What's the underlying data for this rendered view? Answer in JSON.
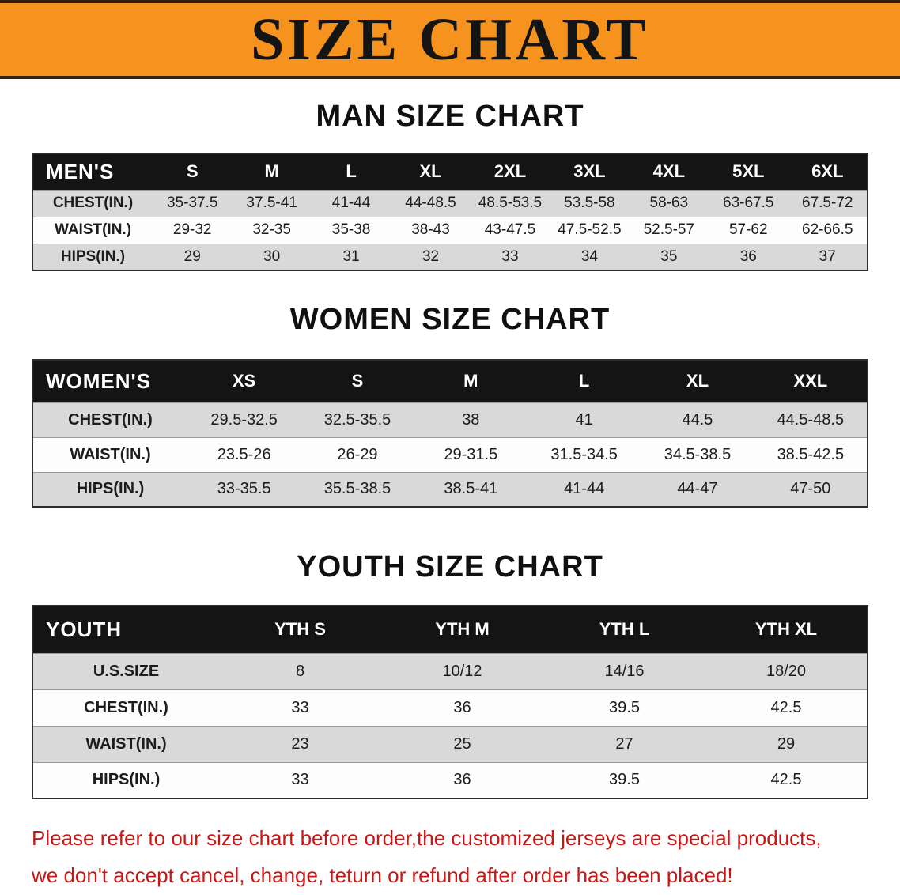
{
  "banner": {
    "title": "SIZE CHART"
  },
  "colors": {
    "banner_orange": "#f6921e",
    "header_black": "#141414",
    "row_gray": "#d9d9d9",
    "disclaimer_red": "#cc1616"
  },
  "tables": [
    {
      "heading": "MAN SIZE CHART",
      "header_label": "MEN'S",
      "sizes": [
        "S",
        "M",
        "L",
        "XL",
        "2XL",
        "3XL",
        "4XL",
        "5XL",
        "6XL"
      ],
      "rows": [
        {
          "label": "CHEST(IN.)",
          "values": [
            "35-37.5",
            "37.5-41",
            "41-44",
            "44-48.5",
            "48.5-53.5",
            "53.5-58",
            "58-63",
            "63-67.5",
            "67.5-72"
          ]
        },
        {
          "label": "WAIST(IN.)",
          "values": [
            "29-32",
            "32-35",
            "35-38",
            "38-43",
            "43-47.5",
            "47.5-52.5",
            "52.5-57",
            "57-62",
            "62-66.5"
          ]
        },
        {
          "label": "HIPS(IN.)",
          "values": [
            "29",
            "30",
            "31",
            "32",
            "33",
            "34",
            "35",
            "36",
            "37"
          ]
        }
      ]
    },
    {
      "heading": "WOMEN SIZE CHART",
      "header_label": "WOMEN'S",
      "sizes": [
        "XS",
        "S",
        "M",
        "L",
        "XL",
        "XXL"
      ],
      "rows": [
        {
          "label": "CHEST(IN.)",
          "values": [
            "29.5-32.5",
            "32.5-35.5",
            "38",
            "41",
            "44.5",
            "44.5-48.5"
          ]
        },
        {
          "label": "WAIST(IN.)",
          "values": [
            "23.5-26",
            "26-29",
            "29-31.5",
            "31.5-34.5",
            "34.5-38.5",
            "38.5-42.5"
          ]
        },
        {
          "label": "HIPS(IN.)",
          "values": [
            "33-35.5",
            "35.5-38.5",
            "38.5-41",
            "41-44",
            "44-47",
            "47-50"
          ]
        }
      ]
    },
    {
      "heading": "YOUTH SIZE CHART",
      "header_label": "YOUTH",
      "sizes": [
        "YTH S",
        "YTH M",
        "YTH L",
        "YTH XL"
      ],
      "rows": [
        {
          "label": "U.S.SIZE",
          "values": [
            "8",
            "10/12",
            "14/16",
            "18/20"
          ]
        },
        {
          "label": "CHEST(IN.)",
          "values": [
            "33",
            "36",
            "39.5",
            "42.5"
          ]
        },
        {
          "label": "WAIST(IN.)",
          "values": [
            "23",
            "25",
            "27",
            "29"
          ]
        },
        {
          "label": "HIPS(IN.)",
          "values": [
            "33",
            "36",
            "39.5",
            "42.5"
          ]
        }
      ]
    }
  ],
  "disclaimer": {
    "line1": "Please refer to our size chart before order,the customized jerseys are special products,",
    "line2": "we don't accept cancel, change, teturn or refund after order has been placed!"
  }
}
